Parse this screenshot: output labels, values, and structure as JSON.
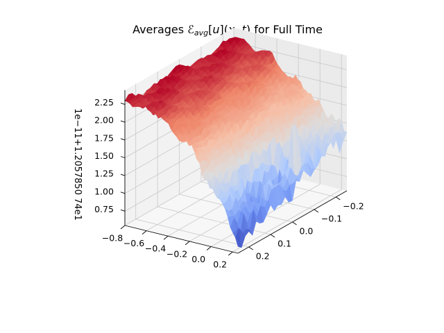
{
  "chart_data": {
    "type": "surface",
    "title": "Averages ℰ_avg[u](x,t) for Full Time",
    "title_parts": {
      "prefix": "Averages ",
      "script_E": "ℰ",
      "subscript": "avg",
      "bracket_open": "[",
      "var_u": "u",
      "bracket_close": "](",
      "var_x": "x",
      "comma": ", ",
      "var_t": "t",
      "suffix": ") for Full Time"
    },
    "xlabel": "",
    "ylabel": "",
    "zlabel": "",
    "z_offset_text": "1e−11+1.20578507 4e1",
    "z_offset_label": "1e−11+1.2057850 74e1",
    "x_axis": {
      "range": [
        -0.8,
        0.25
      ],
      "ticks": [
        "−0.8",
        "−0.6",
        "−0.4",
        "−0.2",
        "0.0",
        "0.2"
      ]
    },
    "y_axis": {
      "range": [
        -0.25,
        0.25
      ],
      "ticks": [
        "−0.2",
        "−0.1",
        "0.0",
        "0.1",
        "0.2"
      ]
    },
    "z_axis": {
      "range": [
        0.55,
        2.45
      ],
      "ticks": [
        "0.75",
        "1.00",
        "1.25",
        "1.50",
        "1.75",
        "2.00",
        "2.25"
      ]
    },
    "colormap": "coolwarm",
    "colormap_stops": [
      "#3b4cc0",
      "#7396f5",
      "#b0cbfc",
      "#dddcdc",
      "#f6bfa6",
      "#ee8468",
      "#b40426"
    ],
    "surface_samples": [
      {
        "x": -0.8,
        "y": -0.25,
        "z": 2.3
      },
      {
        "x": -0.8,
        "y": 0.25,
        "z": 2.3
      },
      {
        "x": -0.4,
        "y": 0.0,
        "z": 1.9
      },
      {
        "x": -0.1,
        "y": 0.0,
        "z": 1.35
      },
      {
        "x": 0.1,
        "y": 0.1,
        "z": 0.9
      },
      {
        "x": 0.2,
        "y": 0.0,
        "z": 0.85
      },
      {
        "x": 0.25,
        "y": -0.25,
        "z": 1.2
      },
      {
        "x": 0.25,
        "y": 0.25,
        "z": 0.75
      }
    ],
    "grid": true
  }
}
